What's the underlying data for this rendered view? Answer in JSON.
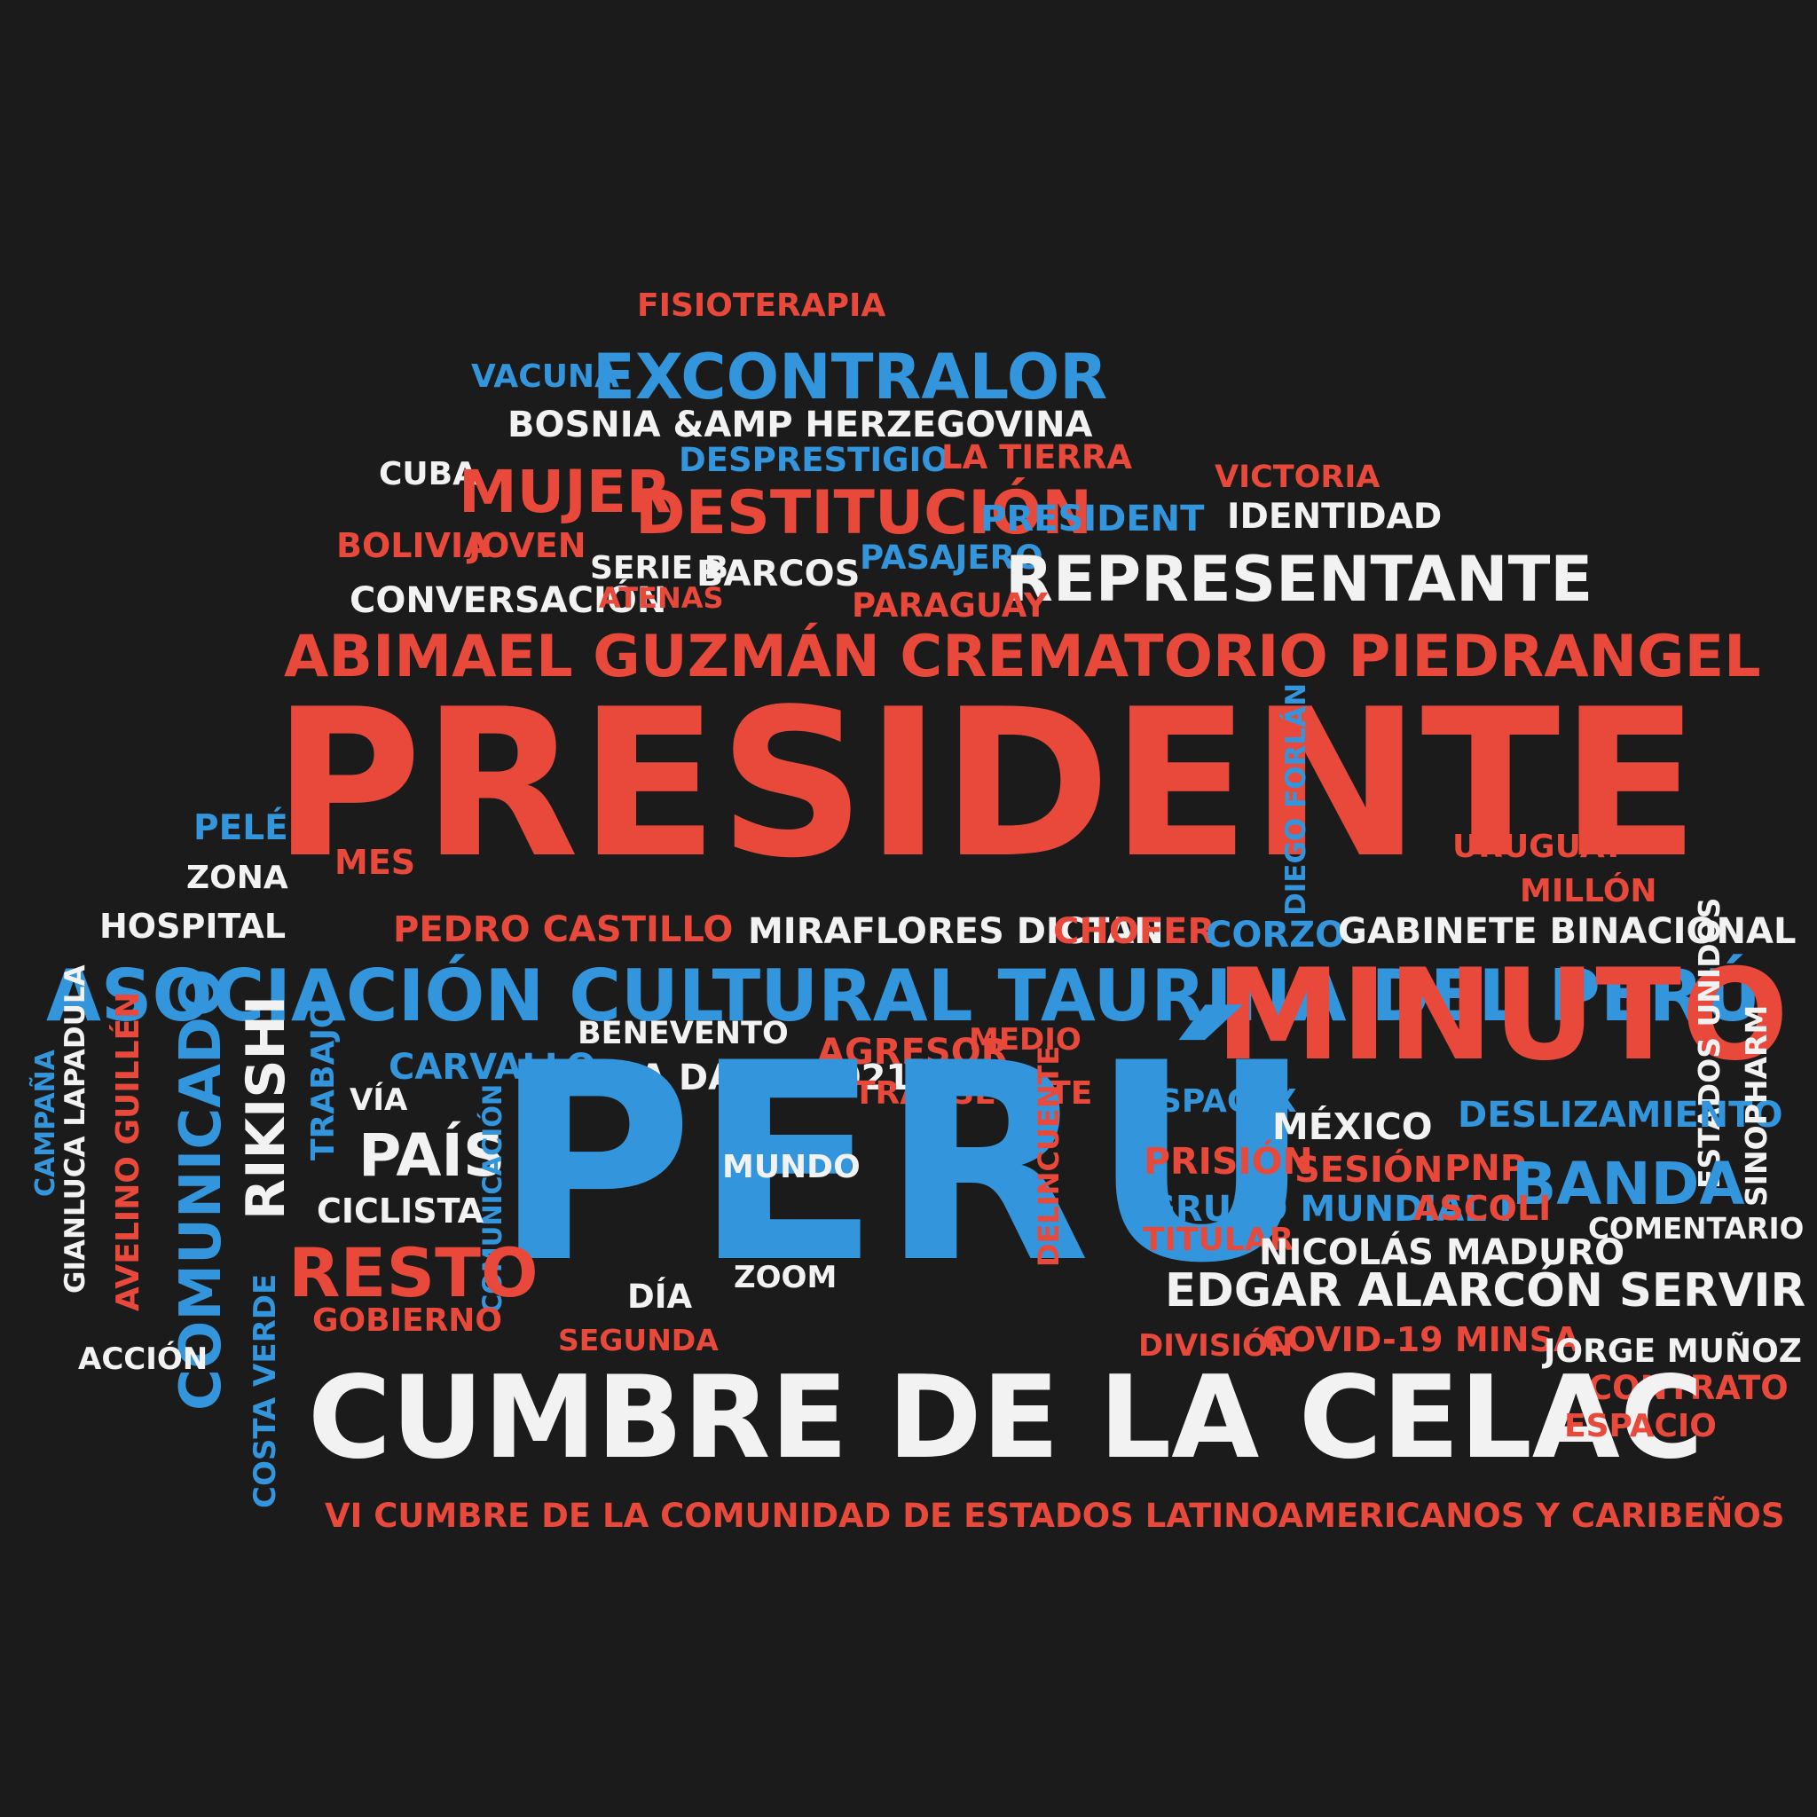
{
  "colors": {
    "background": "#1b1b1b",
    "red": "#e8493b",
    "blue": "#3396dd",
    "white": "#f2f2f2"
  },
  "words": [
    {
      "text": "FISIOTERAPIA",
      "color": "red"
    },
    {
      "text": "VACUNA",
      "color": "blue"
    },
    {
      "text": "EXCONTRALOR",
      "color": "blue"
    },
    {
      "text": "BOSNIA &AMP HERZEGOVINA",
      "color": "white"
    },
    {
      "text": "DESPRESTIGIO",
      "color": "blue"
    },
    {
      "text": "LA TIERRA",
      "color": "red"
    },
    {
      "text": "CUBA",
      "color": "white"
    },
    {
      "text": "MUJER",
      "color": "red"
    },
    {
      "text": "DESTITUCIÓN",
      "color": "red"
    },
    {
      "text": "VICTORIA",
      "color": "red"
    },
    {
      "text": "PRESIDENT",
      "color": "blue"
    },
    {
      "text": "IDENTIDAD",
      "color": "white"
    },
    {
      "text": "BOLIVIA",
      "color": "red"
    },
    {
      "text": "JOVEN",
      "color": "red"
    },
    {
      "text": "SERIE B",
      "color": "white"
    },
    {
      "text": "BARCOS",
      "color": "white"
    },
    {
      "text": "PASAJERO",
      "color": "blue"
    },
    {
      "text": "REPRESENTANTE",
      "color": "white"
    },
    {
      "text": "CONVERSACIÓN",
      "color": "white"
    },
    {
      "text": "ATENAS",
      "color": "red"
    },
    {
      "text": "PARAGUAY",
      "color": "red"
    },
    {
      "text": "ABIMAEL GUZMÁN CREMATORIO PIEDRANGEL",
      "color": "red"
    },
    {
      "text": "PRESIDENTE",
      "color": "red"
    },
    {
      "text": "PELÉ",
      "color": "blue"
    },
    {
      "text": "MES",
      "color": "red"
    },
    {
      "text": "ZONA",
      "color": "white"
    },
    {
      "text": "DIEGO FORLÁN",
      "color": "blue"
    },
    {
      "text": "URUGUAY",
      "color": "red"
    },
    {
      "text": "MILLÓN",
      "color": "red"
    },
    {
      "text": "HOSPITAL",
      "color": "white"
    },
    {
      "text": "PEDRO CASTILLO",
      "color": "red"
    },
    {
      "text": "MIRAFLORES DICTAN",
      "color": "white"
    },
    {
      "text": "CHOFER",
      "color": "red"
    },
    {
      "text": "CORZO",
      "color": "blue"
    },
    {
      "text": "GABINETE BINACIONAL",
      "color": "white"
    },
    {
      "text": "ASOCIACIÓN CULTURAL TAURINA DEL PERÚ",
      "color": "blue"
    },
    {
      "text": "MINUTO",
      "color": "red"
    },
    {
      "text": "ESTADOS UNIDOS",
      "color": "white"
    },
    {
      "text": "BENEVENTO",
      "color": "white"
    },
    {
      "text": "AGRESOR",
      "color": "red"
    },
    {
      "text": "MEDIO",
      "color": "red"
    },
    {
      "text": "COPA DAVIS 2021",
      "color": "white"
    },
    {
      "text": "TRANSEÚNTE",
      "color": "red"
    },
    {
      "text": "CARVALLO",
      "color": "blue"
    },
    {
      "text": "VÍA",
      "color": "white"
    },
    {
      "text": "SPACEX",
      "color": "blue"
    },
    {
      "text": "DESLIZAMIENTO",
      "color": "blue"
    },
    {
      "text": "SINOPHARM",
      "color": "white"
    },
    {
      "text": "CAMPAÑA",
      "color": "blue"
    },
    {
      "text": "GIANLUCA LAPADULA",
      "color": "white"
    },
    {
      "text": "AVELINO GUILLÉN",
      "color": "red"
    },
    {
      "text": "COMUNICADO",
      "color": "blue"
    },
    {
      "text": "RIKISHI",
      "color": "white"
    },
    {
      "text": "TRABAJO",
      "color": "blue"
    },
    {
      "text": "PAÍS",
      "color": "white"
    },
    {
      "text": "COMUNICACIÓN",
      "color": "blue"
    },
    {
      "text": "PERÚ",
      "color": "blue"
    },
    {
      "text": "MUNDO",
      "color": "white"
    },
    {
      "text": "DELINCUENTE",
      "color": "red"
    },
    {
      "text": "MÉXICO",
      "color": "white"
    },
    {
      "text": "PRISIÓN",
      "color": "red"
    },
    {
      "text": "SESIÓN",
      "color": "red"
    },
    {
      "text": "PNP",
      "color": "red"
    },
    {
      "text": "BANDA",
      "color": "blue"
    },
    {
      "text": "CICLISTA",
      "color": "white"
    },
    {
      "text": "GRUPO MUNDIAL I",
      "color": "blue"
    },
    {
      "text": "ASCOLI",
      "color": "red"
    },
    {
      "text": "COMENTARIO",
      "color": "white"
    },
    {
      "text": "TITULAR",
      "color": "red"
    },
    {
      "text": "NICOLÁS MADURO",
      "color": "white"
    },
    {
      "text": "RESTO",
      "color": "red"
    },
    {
      "text": "ZOOM",
      "color": "white"
    },
    {
      "text": "DÍA",
      "color": "white"
    },
    {
      "text": "EDGAR ALARCÓN SERVIR",
      "color": "white"
    },
    {
      "text": "GOBIERNO",
      "color": "red"
    },
    {
      "text": "SEGUNDA",
      "color": "red"
    },
    {
      "text": "DIVISIÓN",
      "color": "red"
    },
    {
      "text": "COVID-19 MINSA",
      "color": "red"
    },
    {
      "text": "ACCIÓN",
      "color": "white"
    },
    {
      "text": "JORGE MUÑOZ",
      "color": "white"
    },
    {
      "text": "COSTA VERDE",
      "color": "blue"
    },
    {
      "text": "CONTRATO",
      "color": "red"
    },
    {
      "text": "CUMBRE DE LA CELAC",
      "color": "white"
    },
    {
      "text": "ESPACIO",
      "color": "red"
    },
    {
      "text": "VI CUMBRE DE LA COMUNIDAD DE ESTADOS LATINOAMERICANOS Y CARIBEÑOS",
      "color": "red"
    }
  ]
}
